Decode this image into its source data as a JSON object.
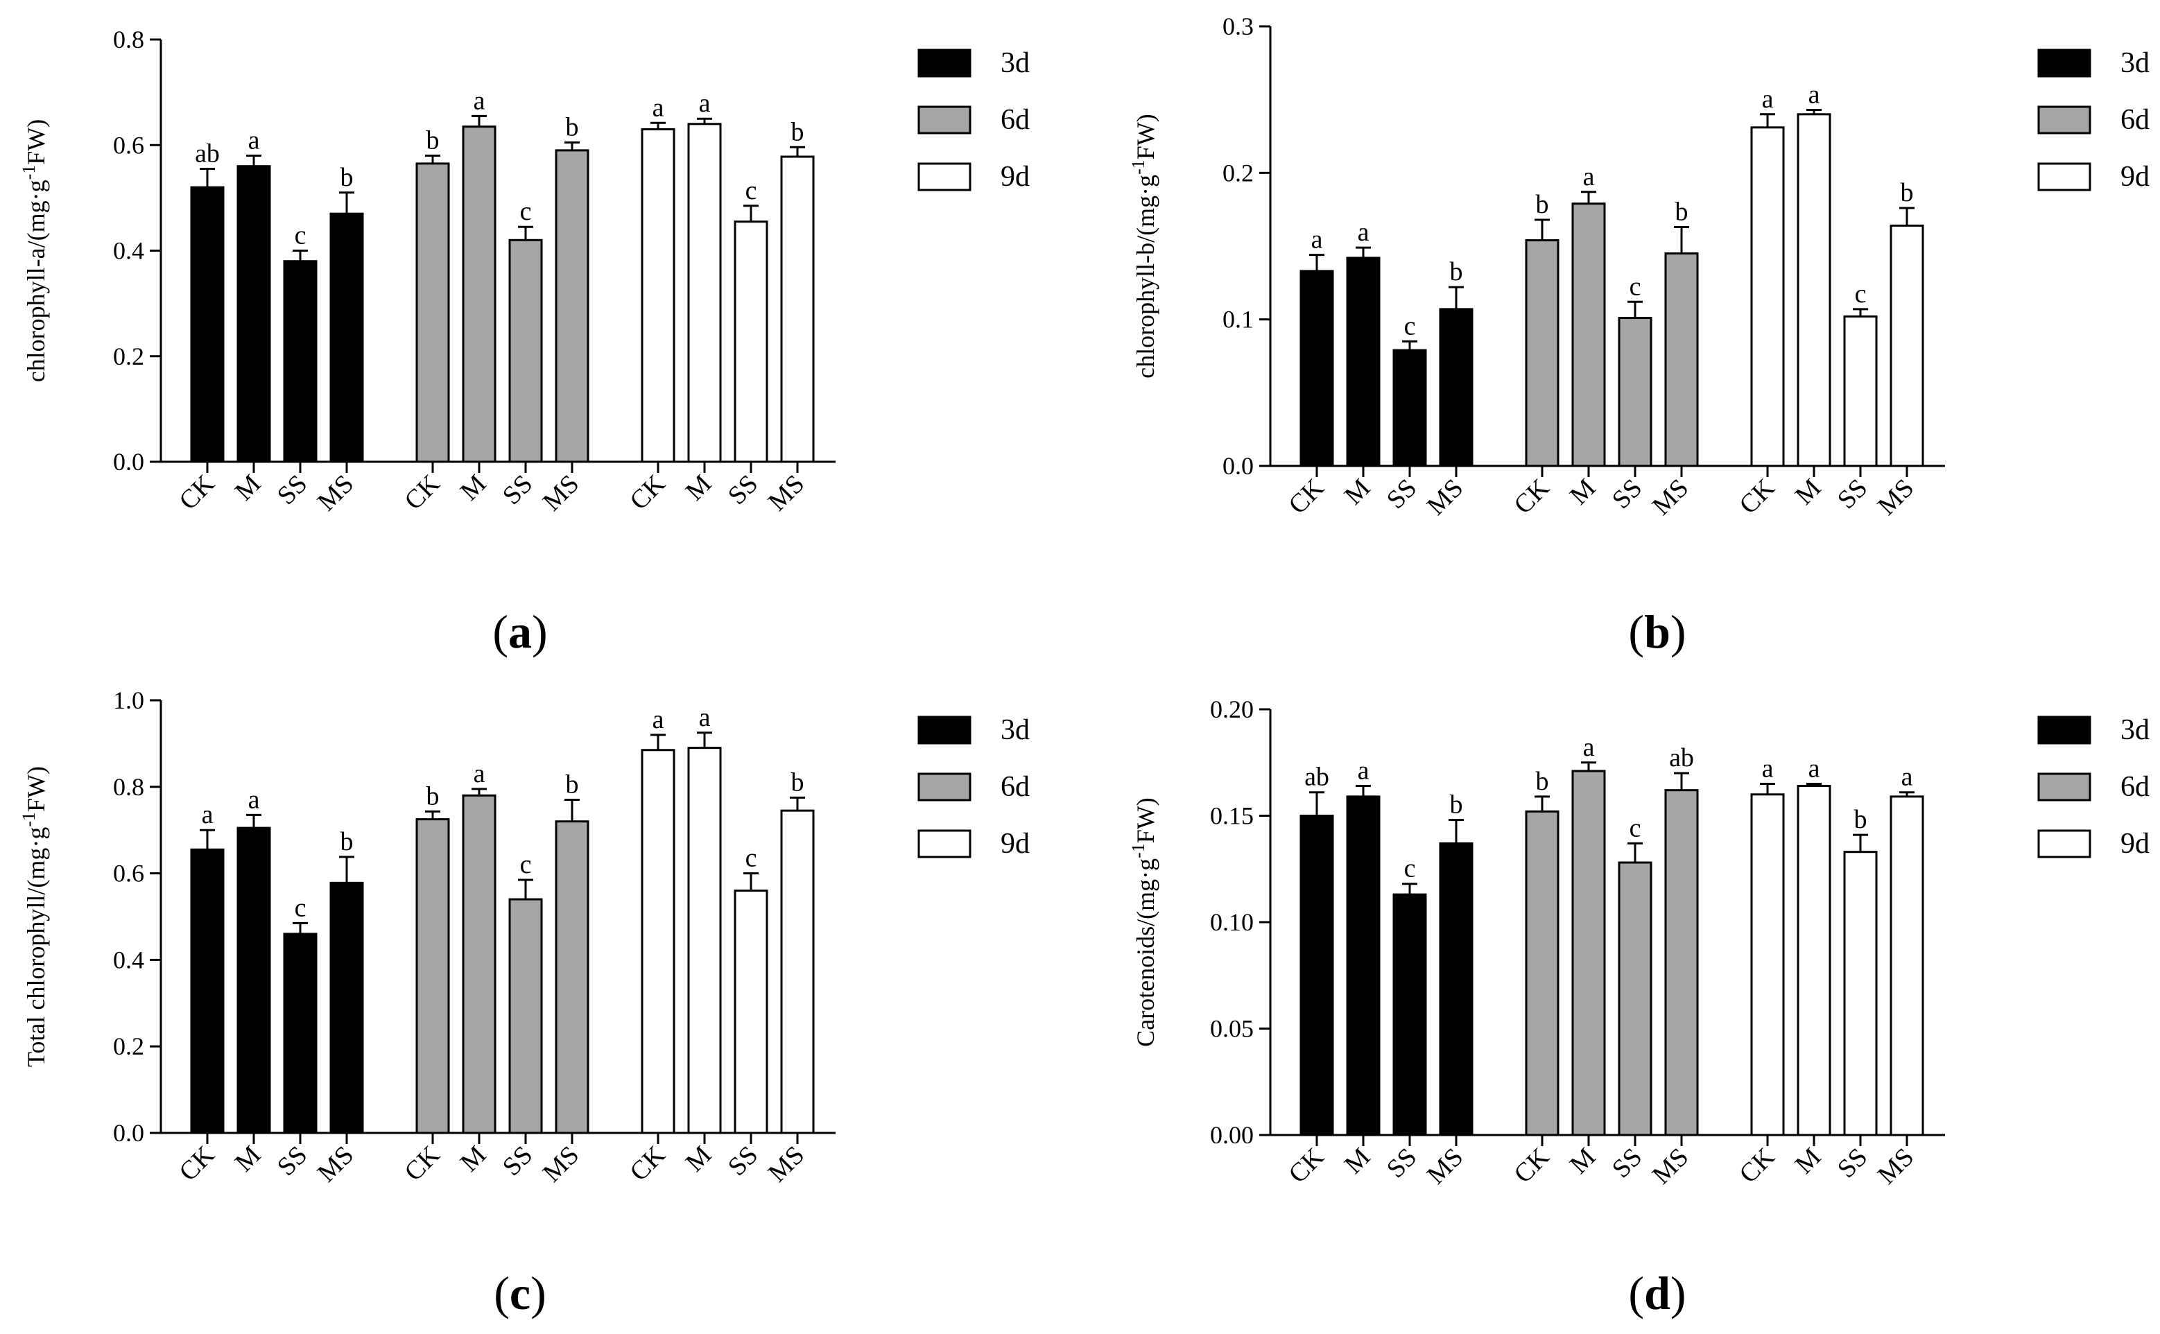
{
  "figure": {
    "panel_labels": [
      "a",
      "b",
      "c",
      "d"
    ],
    "colors": {
      "3d": "#000000",
      "6d": "#a6a6a6",
      "9d": "#ffffff",
      "stroke": "#000000"
    }
  },
  "chart_data": [
    {
      "type": "bar",
      "panel": "a",
      "ylabel": "chlorophyll-a/(mg·g⁻¹FW)",
      "ylabel_parts": [
        "chlorophyll-a/(mg·g",
        "-1",
        "FW)"
      ],
      "ylim": [
        0,
        0.8
      ],
      "yticks": [
        "0.0",
        "0.2",
        "0.4",
        "0.6",
        "0.8"
      ],
      "categories": [
        "CK",
        "M",
        "SS",
        "MS"
      ],
      "legend": [
        "3d",
        "6d",
        "9d"
      ],
      "legend_position": "top-right",
      "series": [
        {
          "name": "3d",
          "values": [
            0.52,
            0.56,
            0.38,
            0.47
          ],
          "errors": [
            0.035,
            0.02,
            0.02,
            0.04
          ],
          "letters": [
            "ab",
            "a",
            "c",
            "b"
          ]
        },
        {
          "name": "6d",
          "values": [
            0.565,
            0.635,
            0.42,
            0.59
          ],
          "errors": [
            0.015,
            0.02,
            0.025,
            0.015
          ],
          "letters": [
            "b",
            "a",
            "c",
            "b"
          ]
        },
        {
          "name": "9d",
          "values": [
            0.63,
            0.64,
            0.455,
            0.578
          ],
          "errors": [
            0.012,
            0.01,
            0.03,
            0.018
          ],
          "letters": [
            "a",
            "a",
            "c",
            "b"
          ]
        }
      ]
    },
    {
      "type": "bar",
      "panel": "b",
      "ylabel": "chlorophyll-b/(mg·g⁻¹FW)",
      "ylabel_parts": [
        "chlorophyll-b/(mg·g",
        "-1",
        "FW)"
      ],
      "ylim": [
        0,
        0.3
      ],
      "yticks": [
        "0.0",
        "0.1",
        "0.2",
        "0.3"
      ],
      "categories": [
        "CK",
        "M",
        "SS",
        "MS"
      ],
      "legend": [
        "3d",
        "6d",
        "9d"
      ],
      "legend_position": "top-right",
      "series": [
        {
          "name": "3d",
          "values": [
            0.133,
            0.142,
            0.079,
            0.107
          ],
          "errors": [
            0.011,
            0.007,
            0.006,
            0.015
          ],
          "letters": [
            "a",
            "a",
            "c",
            "b"
          ]
        },
        {
          "name": "6d",
          "values": [
            0.154,
            0.179,
            0.101,
            0.145
          ],
          "errors": [
            0.014,
            0.008,
            0.011,
            0.018
          ],
          "letters": [
            "b",
            "a",
            "c",
            "b"
          ]
        },
        {
          "name": "9d",
          "values": [
            0.231,
            0.24,
            0.102,
            0.164
          ],
          "errors": [
            0.009,
            0.003,
            0.005,
            0.012
          ],
          "letters": [
            "a",
            "a",
            "c",
            "b"
          ]
        }
      ]
    },
    {
      "type": "bar",
      "panel": "c",
      "ylabel": "Total chlorophyll/(mg·g⁻¹FW)",
      "ylabel_parts": [
        "Total chlorophyll/(mg·g",
        "-1",
        "FW)"
      ],
      "ylim": [
        0,
        1.0
      ],
      "yticks": [
        "0.0",
        "0.2",
        "0.4",
        "0.6",
        "0.8",
        "1.0"
      ],
      "categories": [
        "CK",
        "M",
        "SS",
        "MS"
      ],
      "legend": [
        "3d",
        "6d",
        "9d"
      ],
      "legend_position": "top-right",
      "series": [
        {
          "name": "3d",
          "values": [
            0.655,
            0.705,
            0.46,
            0.578
          ],
          "errors": [
            0.045,
            0.03,
            0.025,
            0.06
          ],
          "letters": [
            "a",
            "a",
            "c",
            "b"
          ]
        },
        {
          "name": "6d",
          "values": [
            0.725,
            0.78,
            0.54,
            0.72
          ],
          "errors": [
            0.018,
            0.015,
            0.045,
            0.05
          ],
          "letters": [
            "b",
            "a",
            "c",
            "b"
          ]
        },
        {
          "name": "9d",
          "values": [
            0.885,
            0.89,
            0.56,
            0.745
          ],
          "errors": [
            0.035,
            0.035,
            0.04,
            0.03
          ],
          "letters": [
            "a",
            "a",
            "c",
            "b"
          ]
        }
      ]
    },
    {
      "type": "bar",
      "panel": "d",
      "ylabel": "Carotenoids/(mg·g⁻¹FW)",
      "ylabel_parts": [
        "Carotenoids/(mg·g",
        "-1",
        "FW)"
      ],
      "ylim": [
        0,
        0.2
      ],
      "yticks": [
        "0.00",
        "0.05",
        "0.10",
        "0.15",
        "0.20"
      ],
      "categories": [
        "CK",
        "M",
        "SS",
        "MS"
      ],
      "legend": [
        "3d",
        "6d",
        "9d"
      ],
      "legend_position": "top-right",
      "series": [
        {
          "name": "3d",
          "values": [
            0.15,
            0.159,
            0.113,
            0.137
          ],
          "errors": [
            0.011,
            0.005,
            0.005,
            0.011
          ],
          "letters": [
            "ab",
            "a",
            "c",
            "b"
          ]
        },
        {
          "name": "6d",
          "values": [
            0.152,
            0.171,
            0.128,
            0.162
          ],
          "errors": [
            0.007,
            0.004,
            0.009,
            0.008
          ],
          "letters": [
            "b",
            "a",
            "c",
            "ab"
          ]
        },
        {
          "name": "9d",
          "values": [
            0.16,
            0.164,
            0.133,
            0.159
          ],
          "errors": [
            0.005,
            0.001,
            0.008,
            0.002
          ],
          "letters": [
            "a",
            "a",
            "b",
            "a"
          ]
        }
      ]
    }
  ]
}
